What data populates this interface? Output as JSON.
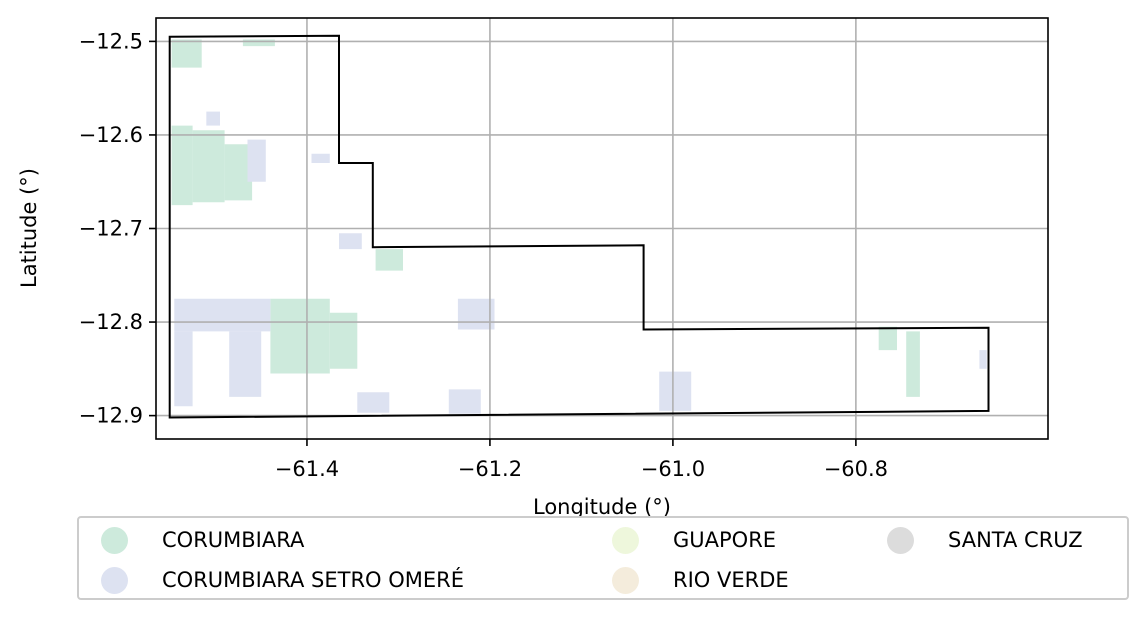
{
  "chart_data": {
    "type": "map",
    "xlabel": "Longitude (°)",
    "ylabel": "Latitude (°)",
    "xlim": [
      -61.565,
      -60.59
    ],
    "ylim": [
      -12.925,
      -12.475
    ],
    "grid": true,
    "x_ticks": [
      {
        "value": -61.4,
        "label": "−61.4"
      },
      {
        "value": -61.2,
        "label": "−61.2"
      },
      {
        "value": -61.0,
        "label": "−61.0"
      },
      {
        "value": -60.8,
        "label": "−60.8"
      }
    ],
    "y_ticks": [
      {
        "value": -12.5,
        "label": "−12.5"
      },
      {
        "value": -12.6,
        "label": "−12.6"
      },
      {
        "value": -12.7,
        "label": "−12.7"
      },
      {
        "value": -12.8,
        "label": "−12.8"
      },
      {
        "value": -12.9,
        "label": "−12.9"
      }
    ],
    "boundary": [
      [
        -61.55,
        -12.495
      ],
      [
        -61.365,
        -12.494
      ],
      [
        -61.365,
        -12.63
      ],
      [
        -61.328,
        -12.63
      ],
      [
        -61.328,
        -12.72
      ],
      [
        -61.032,
        -12.718
      ],
      [
        -61.032,
        -12.808
      ],
      [
        -60.655,
        -12.806
      ],
      [
        -60.655,
        -12.895
      ],
      [
        -61.55,
        -12.902
      ],
      [
        -61.55,
        -12.495
      ]
    ],
    "legend_position": "below",
    "legend": [
      {
        "name": "CORUMBIARA",
        "color": "#cdeadc"
      },
      {
        "name": "CORUMBIARA SETRO OMERÉ",
        "color": "#dde2f1"
      },
      {
        "name": "GUAPORE",
        "color": "#eef7dc"
      },
      {
        "name": "RIO VERDE",
        "color": "#f4ecdc"
      },
      {
        "name": "SANTA CRUZ",
        "color": "#dcdcdc"
      }
    ],
    "regions": [
      {
        "category": "CORUMBIARA",
        "polygon": [
          [
            -61.548,
            -12.498
          ],
          [
            -61.515,
            -12.498
          ],
          [
            -61.515,
            -12.528
          ],
          [
            -61.548,
            -12.528
          ]
        ]
      },
      {
        "category": "CORUMBIARA",
        "polygon": [
          [
            -61.47,
            -12.498
          ],
          [
            -61.435,
            -12.498
          ],
          [
            -61.435,
            -12.505
          ],
          [
            -61.47,
            -12.505
          ]
        ]
      },
      {
        "category": "CORUMBIARA",
        "polygon": [
          [
            -61.548,
            -12.59
          ],
          [
            -61.525,
            -12.59
          ],
          [
            -61.525,
            -12.675
          ],
          [
            -61.548,
            -12.675
          ]
        ]
      },
      {
        "category": "CORUMBIARA",
        "polygon": [
          [
            -61.525,
            -12.595
          ],
          [
            -61.49,
            -12.595
          ],
          [
            -61.49,
            -12.672
          ],
          [
            -61.525,
            -12.672
          ]
        ]
      },
      {
        "category": "CORUMBIARA",
        "polygon": [
          [
            -61.49,
            -12.61
          ],
          [
            -61.46,
            -12.61
          ],
          [
            -61.46,
            -12.67
          ],
          [
            -61.49,
            -12.67
          ]
        ]
      },
      {
        "category": "CORUMBIARA",
        "polygon": [
          [
            -61.44,
            -12.775
          ],
          [
            -61.375,
            -12.775
          ],
          [
            -61.375,
            -12.855
          ],
          [
            -61.44,
            -12.855
          ]
        ]
      },
      {
        "category": "CORUMBIARA",
        "polygon": [
          [
            -61.375,
            -12.79
          ],
          [
            -61.345,
            -12.79
          ],
          [
            -61.345,
            -12.85
          ],
          [
            -61.375,
            -12.85
          ]
        ]
      },
      {
        "category": "CORUMBIARA",
        "polygon": [
          [
            -61.325,
            -12.722
          ],
          [
            -61.295,
            -12.722
          ],
          [
            -61.295,
            -12.745
          ],
          [
            -61.325,
            -12.745
          ]
        ]
      },
      {
        "category": "CORUMBIARA",
        "polygon": [
          [
            -60.745,
            -12.81
          ],
          [
            -60.73,
            -12.81
          ],
          [
            -60.73,
            -12.88
          ],
          [
            -60.745,
            -12.88
          ]
        ]
      },
      {
        "category": "CORUMBIARA",
        "polygon": [
          [
            -60.775,
            -12.805
          ],
          [
            -60.755,
            -12.805
          ],
          [
            -60.755,
            -12.83
          ],
          [
            -60.775,
            -12.83
          ]
        ]
      },
      {
        "category": "CORUMBIARA SETRO OMERÉ",
        "polygon": [
          [
            -61.51,
            -12.575
          ],
          [
            -61.495,
            -12.575
          ],
          [
            -61.495,
            -12.59
          ],
          [
            -61.51,
            -12.59
          ]
        ]
      },
      {
        "category": "CORUMBIARA SETRO OMERÉ",
        "polygon": [
          [
            -61.465,
            -12.605
          ],
          [
            -61.445,
            -12.605
          ],
          [
            -61.445,
            -12.65
          ],
          [
            -61.465,
            -12.65
          ]
        ]
      },
      {
        "category": "CORUMBIARA SETRO OMERÉ",
        "polygon": [
          [
            -61.395,
            -12.62
          ],
          [
            -61.375,
            -12.62
          ],
          [
            -61.375,
            -12.63
          ],
          [
            -61.395,
            -12.63
          ]
        ]
      },
      {
        "category": "CORUMBIARA SETRO OMERÉ",
        "polygon": [
          [
            -61.365,
            -12.705
          ],
          [
            -61.34,
            -12.705
          ],
          [
            -61.34,
            -12.722
          ],
          [
            -61.365,
            -12.722
          ]
        ]
      },
      {
        "category": "CORUMBIARA SETRO OMERÉ",
        "polygon": [
          [
            -61.545,
            -12.775
          ],
          [
            -61.44,
            -12.775
          ],
          [
            -61.44,
            -12.81
          ],
          [
            -61.545,
            -12.81
          ]
        ]
      },
      {
        "category": "CORUMBIARA SETRO OMERÉ",
        "polygon": [
          [
            -61.545,
            -12.81
          ],
          [
            -61.525,
            -12.81
          ],
          [
            -61.525,
            -12.89
          ],
          [
            -61.545,
            -12.89
          ]
        ]
      },
      {
        "category": "CORUMBIARA SETRO OMERÉ",
        "polygon": [
          [
            -61.485,
            -12.81
          ],
          [
            -61.45,
            -12.81
          ],
          [
            -61.45,
            -12.88
          ],
          [
            -61.485,
            -12.88
          ]
        ]
      },
      {
        "category": "CORUMBIARA SETRO OMERÉ",
        "polygon": [
          [
            -61.345,
            -12.875
          ],
          [
            -61.31,
            -12.875
          ],
          [
            -61.31,
            -12.897
          ],
          [
            -61.345,
            -12.897
          ]
        ]
      },
      {
        "category": "CORUMBIARA SETRO OMERÉ",
        "polygon": [
          [
            -61.235,
            -12.775
          ],
          [
            -61.195,
            -12.775
          ],
          [
            -61.195,
            -12.808
          ],
          [
            -61.235,
            -12.808
          ]
        ]
      },
      {
        "category": "CORUMBIARA SETRO OMERÉ",
        "polygon": [
          [
            -61.245,
            -12.872
          ],
          [
            -61.21,
            -12.872
          ],
          [
            -61.21,
            -12.898
          ],
          [
            -61.245,
            -12.898
          ]
        ]
      },
      {
        "category": "CORUMBIARA SETRO OMERÉ",
        "polygon": [
          [
            -61.015,
            -12.853
          ],
          [
            -60.98,
            -12.853
          ],
          [
            -60.98,
            -12.895
          ],
          [
            -61.015,
            -12.895
          ]
        ]
      },
      {
        "category": "CORUMBIARA SETRO OMERÉ",
        "polygon": [
          [
            -60.665,
            -12.83
          ],
          [
            -60.657,
            -12.83
          ],
          [
            -60.657,
            -12.85
          ],
          [
            -60.665,
            -12.85
          ]
        ]
      }
    ]
  }
}
